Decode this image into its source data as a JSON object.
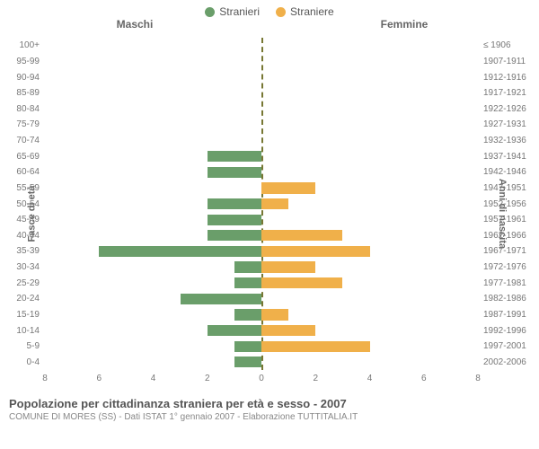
{
  "legend": {
    "male": {
      "label": "Stranieri",
      "color": "#6a9e6a"
    },
    "female": {
      "label": "Straniere",
      "color": "#f0b04a"
    }
  },
  "headers": {
    "left": "Maschi",
    "right": "Femmine"
  },
  "axis_titles": {
    "left": "Fasce di età",
    "right": "Anni di nascita"
  },
  "chart": {
    "type": "population-pyramid",
    "x_max": 8,
    "x_ticks": [
      8,
      6,
      4,
      2,
      0,
      2,
      4,
      6,
      8
    ],
    "center_line_color": "#777733",
    "background_color": "#ffffff",
    "rows": [
      {
        "age": "100+",
        "birth": "≤ 1906",
        "m": 0,
        "f": 0
      },
      {
        "age": "95-99",
        "birth": "1907-1911",
        "m": 0,
        "f": 0
      },
      {
        "age": "90-94",
        "birth": "1912-1916",
        "m": 0,
        "f": 0
      },
      {
        "age": "85-89",
        "birth": "1917-1921",
        "m": 0,
        "f": 0
      },
      {
        "age": "80-84",
        "birth": "1922-1926",
        "m": 0,
        "f": 0
      },
      {
        "age": "75-79",
        "birth": "1927-1931",
        "m": 0,
        "f": 0
      },
      {
        "age": "70-74",
        "birth": "1932-1936",
        "m": 0,
        "f": 0
      },
      {
        "age": "65-69",
        "birth": "1937-1941",
        "m": 2,
        "f": 0
      },
      {
        "age": "60-64",
        "birth": "1942-1946",
        "m": 2,
        "f": 0
      },
      {
        "age": "55-59",
        "birth": "1947-1951",
        "m": 0,
        "f": 2
      },
      {
        "age": "50-54",
        "birth": "1952-1956",
        "m": 2,
        "f": 1
      },
      {
        "age": "45-49",
        "birth": "1957-1961",
        "m": 2,
        "f": 0
      },
      {
        "age": "40-44",
        "birth": "1962-1966",
        "m": 2,
        "f": 3
      },
      {
        "age": "35-39",
        "birth": "1967-1971",
        "m": 6,
        "f": 4
      },
      {
        "age": "30-34",
        "birth": "1972-1976",
        "m": 1,
        "f": 2
      },
      {
        "age": "25-29",
        "birth": "1977-1981",
        "m": 1,
        "f": 3
      },
      {
        "age": "20-24",
        "birth": "1982-1986",
        "m": 3,
        "f": 0
      },
      {
        "age": "15-19",
        "birth": "1987-1991",
        "m": 1,
        "f": 1
      },
      {
        "age": "10-14",
        "birth": "1992-1996",
        "m": 2,
        "f": 2
      },
      {
        "age": "5-9",
        "birth": "1997-2001",
        "m": 1,
        "f": 4
      },
      {
        "age": "0-4",
        "birth": "2002-2006",
        "m": 1,
        "f": 0
      }
    ]
  },
  "title": "Popolazione per cittadinanza straniera per età e sesso - 2007",
  "subtitle": "COMUNE DI MORES (SS) - Dati ISTAT 1° gennaio 2007 - Elaborazione TUTTITALIA.IT"
}
